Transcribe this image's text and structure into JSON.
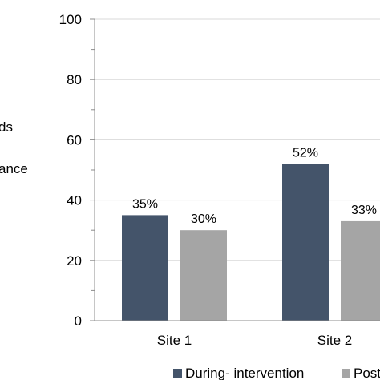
{
  "chart_data": {
    "type": "bar",
    "categories": [
      "Site 1",
      "Site 2"
    ],
    "series": [
      {
        "name": "During- intervention",
        "values": [
          35,
          52
        ],
        "labels": [
          "35%",
          "52%"
        ],
        "color": "#44546a"
      },
      {
        "name": "Post",
        "values": [
          30,
          33
        ],
        "labels": [
          "30%",
          "33%"
        ],
        "color": "#a5a5a5"
      }
    ],
    "ylabel_fragments": [
      "ds",
      "ance"
    ],
    "ylim": [
      0,
      100
    ],
    "yticks": [
      0,
      20,
      40,
      60,
      80,
      100
    ],
    "grid": true,
    "legend": "bottom"
  }
}
